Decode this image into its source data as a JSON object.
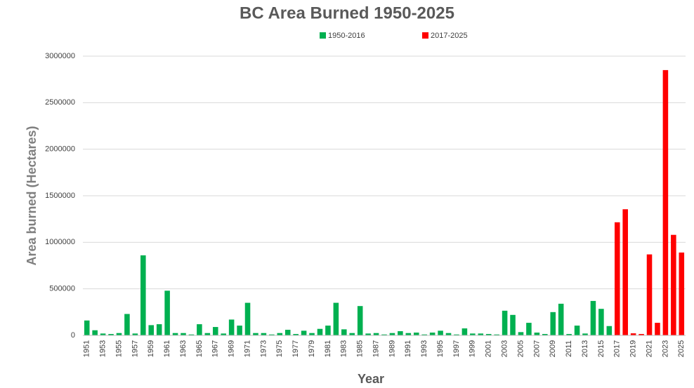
{
  "chart_data": {
    "type": "bar",
    "title": "BC Area Burned 1950-2025",
    "x_label": "Year",
    "y_label": "Area burned (Hectares)",
    "categories": [
      "1951",
      null,
      "1953",
      null,
      "1955",
      null,
      "1957",
      null,
      "1959",
      null,
      "1961",
      null,
      "1963",
      null,
      "1965",
      null,
      "1967",
      null,
      "1969",
      null,
      "1971",
      null,
      "1973",
      null,
      "1975",
      null,
      "1977",
      null,
      "1979",
      null,
      "1981",
      null,
      "1983",
      null,
      "1985",
      null,
      "1987",
      null,
      "1989",
      null,
      "1991",
      null,
      "1993",
      null,
      "1995",
      null,
      "1997",
      null,
      "1999",
      null,
      "2001",
      null,
      "2003",
      null,
      "2005",
      null,
      "2007",
      null,
      "2009",
      null,
      "2011",
      null,
      "2013",
      null,
      "2015",
      null,
      "2017",
      null,
      "2019",
      null,
      "2021",
      null,
      "2023",
      null,
      "2025"
    ],
    "series": [
      {
        "name": "1950-2016",
        "color": "#00b050",
        "values": [
          160000,
          55000,
          20000,
          15000,
          25000,
          230000,
          20000,
          860000,
          110000,
          120000,
          480000,
          25000,
          25000,
          10000,
          120000,
          25000,
          90000,
          20000,
          170000,
          105000,
          350000,
          25000,
          25000,
          10000,
          25000,
          60000,
          15000,
          50000,
          25000,
          70000,
          105000,
          350000,
          65000,
          25000,
          315000,
          20000,
          25000,
          10000,
          25000,
          45000,
          25000,
          30000,
          10000,
          30000,
          50000,
          25000,
          10000,
          75000,
          20000,
          20000,
          15000,
          10000,
          265000,
          220000,
          35000,
          135000,
          30000,
          15000,
          250000,
          340000,
          15000,
          105000,
          20000,
          370000,
          285000,
          100000,
          null,
          null,
          null,
          null,
          null,
          null,
          null,
          null,
          null
        ]
      },
      {
        "name": "2017-2025",
        "color": "#ff0000",
        "values": [
          null,
          null,
          null,
          null,
          null,
          null,
          null,
          null,
          null,
          null,
          null,
          null,
          null,
          null,
          null,
          null,
          null,
          null,
          null,
          null,
          null,
          null,
          null,
          null,
          null,
          null,
          null,
          null,
          null,
          null,
          null,
          null,
          null,
          null,
          null,
          null,
          null,
          null,
          null,
          null,
          null,
          null,
          null,
          null,
          null,
          null,
          null,
          null,
          null,
          null,
          null,
          null,
          null,
          null,
          null,
          null,
          null,
          null,
          null,
          null,
          null,
          null,
          null,
          null,
          null,
          null,
          1215000,
          1355000,
          22000,
          15000,
          870000,
          135000,
          2850000,
          1080000,
          890000
        ]
      }
    ],
    "ylim": [
      0,
      3000000
    ],
    "yticks": [
      0,
      500000,
      1000000,
      1500000,
      2000000,
      2500000,
      3000000
    ],
    "grid": true
  }
}
